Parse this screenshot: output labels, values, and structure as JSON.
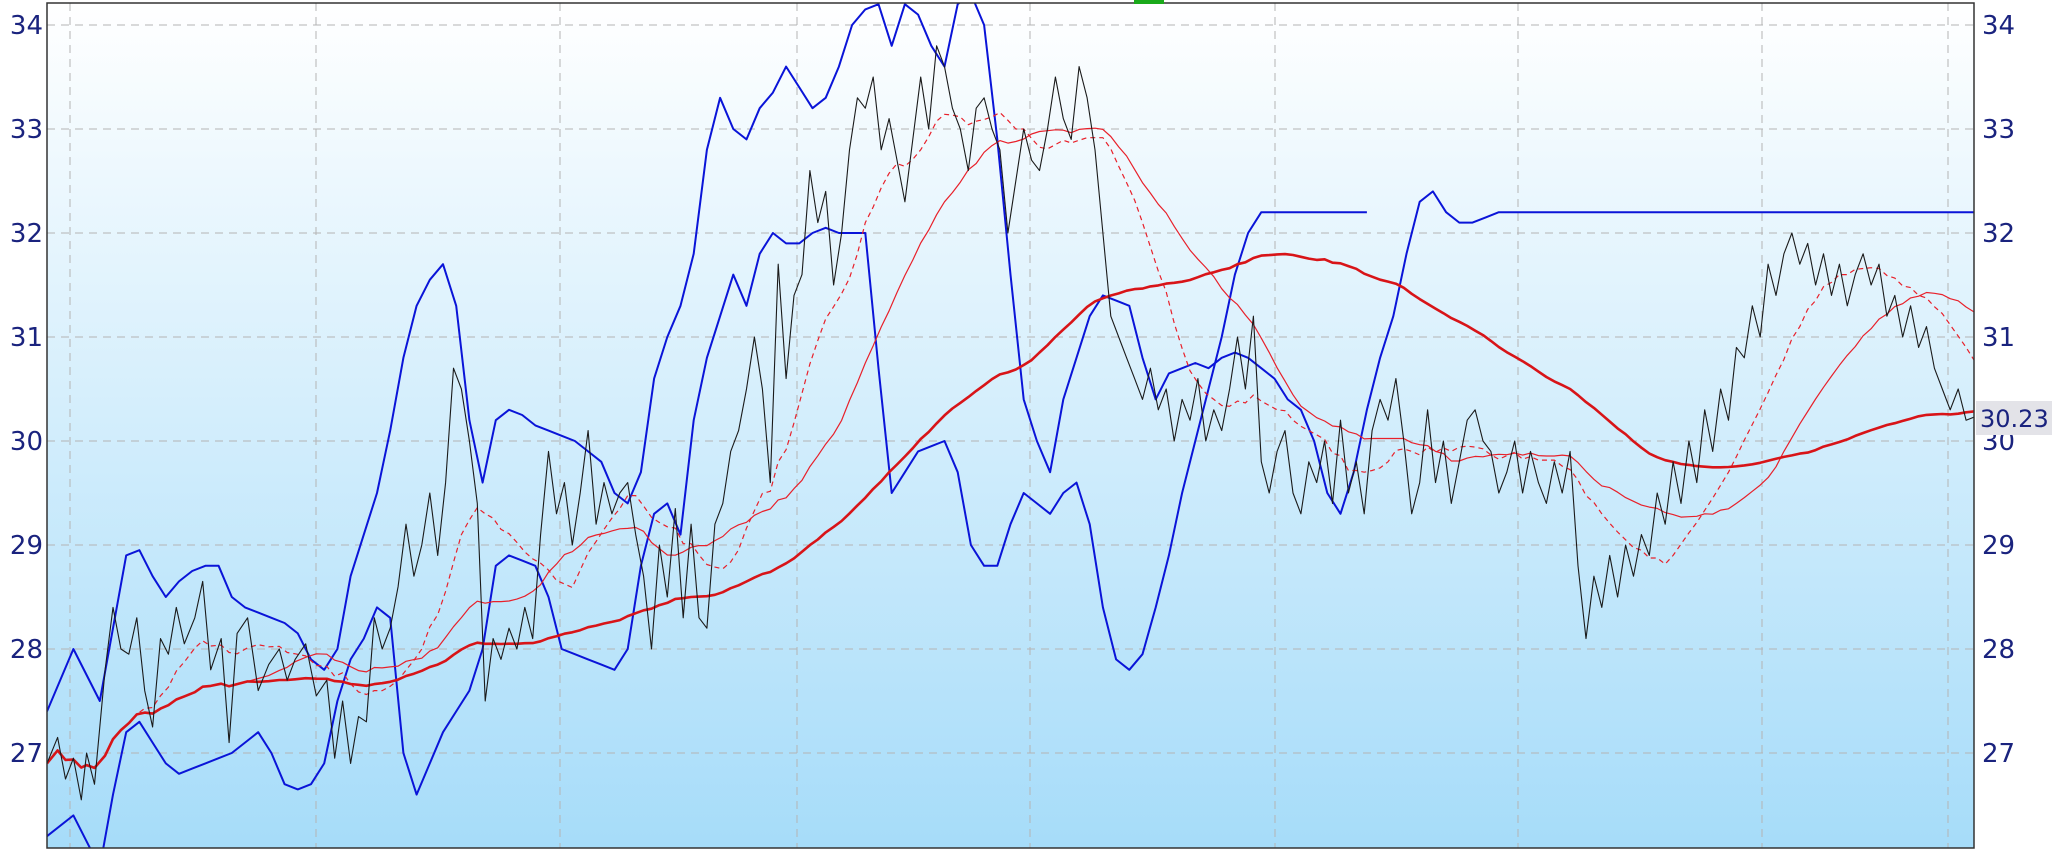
{
  "chart_data": {
    "type": "line",
    "title": "",
    "xlabel": "",
    "ylabel": "",
    "ylim": [
      26.1,
      34.2
    ],
    "y_ticks": [
      27,
      28,
      29,
      30,
      31,
      32,
      33,
      34
    ],
    "y_tick_labels": [
      "27",
      "28",
      "29",
      "30",
      "31",
      "32",
      "33",
      "34"
    ],
    "grid": true,
    "last_value_label": "30.23",
    "colors": {
      "background_top": "#ffffff",
      "background_bottom": "#a6dcf9",
      "price": "#1a1a1a",
      "bollinger": "#0a14d8",
      "ma_fast": "#e8202a",
      "ma_mid": "#e8202a",
      "ma_slow": "#d81418",
      "grid": "#b4b4b4",
      "marker": "#1aaa1a",
      "tick_text": "#1a237e"
    },
    "series": [
      {
        "key": "price",
        "x": [
          0,
          4,
          7,
          10,
          13,
          15,
          18,
          22,
          25,
          28,
          31,
          34,
          37,
          40,
          43,
          46,
          49,
          52,
          56,
          59,
          62,
          66,
          69,
          72,
          76,
          80,
          84,
          88,
          91,
          94,
          98,
          102,
          106,
          109,
          112,
          115,
          118,
          121,
          124,
          127,
          130,
          133,
          136,
          139,
          142,
          145,
          148,
          151,
          154,
          157,
          160,
          163,
          166,
          169,
          172,
          175,
          178,
          181,
          184,
          187,
          190,
          193,
          196,
          199,
          202,
          205,
          208,
          211,
          214,
          217,
          220,
          223,
          226,
          229,
          232,
          235,
          238,
          241,
          244,
          247,
          250,
          253,
          256,
          259,
          262,
          265,
          268,
          271,
          274,
          277,
          280,
          283,
          286,
          289,
          292,
          295,
          298,
          301,
          304,
          307,
          310,
          313,
          316,
          319,
          322,
          325,
          328,
          331,
          334,
          337,
          340,
          343,
          346,
          349,
          352,
          355,
          358,
          361,
          364,
          367,
          370,
          373,
          376,
          379,
          382,
          385,
          388,
          391,
          394,
          397,
          400
        ],
        "y": [
          26.9,
          27.15,
          26.75,
          26.95,
          26.55,
          27.0,
          26.7,
          27.8,
          28.4,
          28.0,
          27.95,
          28.3,
          27.6,
          27.25,
          28.1,
          27.95,
          28.4,
          28.05,
          28.3,
          28.65,
          27.8,
          28.1,
          27.1,
          28.15,
          28.3,
          27.6,
          27.85,
          28.0,
          27.7,
          27.9,
          28.05,
          27.55,
          27.7,
          26.95,
          27.5,
          26.9,
          27.35,
          27.3,
          28.3,
          28.0,
          28.2,
          28.6,
          29.2,
          28.7,
          29.0,
          29.5,
          28.9,
          29.6,
          30.7,
          30.5,
          30.0,
          29.4,
          27.5,
          28.1,
          27.9,
          28.2,
          28.0,
          28.4,
          28.1,
          29.1,
          29.9,
          29.3,
          29.6,
          29.0,
          29.5,
          30.1,
          29.2,
          29.6,
          29.3,
          29.5,
          29.6,
          29.1,
          28.7,
          28.0,
          29.0,
          28.5,
          29.35,
          28.3,
          29.2,
          28.3,
          28.2,
          29.2,
          29.4,
          29.9,
          30.1,
          30.5,
          31.0,
          30.5,
          29.6,
          31.7,
          30.6,
          31.4,
          31.6,
          32.6,
          32.1,
          32.4,
          31.5,
          32.0,
          32.8,
          33.3,
          33.2,
          33.5,
          32.8,
          33.1,
          32.7,
          32.3,
          32.9,
          33.5,
          33.0,
          33.8,
          33.6,
          33.2,
          33.0,
          32.6,
          33.2,
          33.3,
          33.0,
          32.8,
          32.0,
          32.5,
          33.0,
          32.7,
          32.6,
          33.0,
          33.5,
          33.1,
          32.9,
          33.6,
          33.3,
          32.8,
          32.0
        ],
        "x2": [
          403,
          406,
          409,
          412,
          415,
          418,
          421,
          424,
          427,
          430,
          433,
          436,
          439,
          442,
          445,
          448,
          451,
          454,
          457,
          460,
          463,
          466,
          469,
          472,
          475,
          478,
          481,
          484,
          487,
          490,
          493,
          496,
          499,
          502,
          505,
          508,
          511,
          514,
          517,
          520,
          523,
          526,
          529,
          532,
          535,
          538,
          541,
          544,
          547,
          550,
          553,
          556,
          559,
          562,
          565,
          568,
          571,
          574,
          577,
          580,
          583,
          586,
          589,
          592,
          595,
          598,
          601,
          604,
          607,
          610,
          613,
          616,
          619,
          622,
          625,
          628,
          631,
          634,
          637,
          640,
          643,
          646,
          649,
          652,
          655,
          658,
          661,
          664,
          667,
          670,
          673,
          676,
          679,
          682,
          685,
          688,
          691,
          694,
          697,
          700,
          703,
          706,
          709,
          712,
          715,
          718,
          721,
          724,
          727,
          730
        ],
        "y2": [
          31.2,
          31.0,
          30.8,
          30.6,
          30.4,
          30.7,
          30.3,
          30.5,
          30.0,
          30.4,
          30.2,
          30.6,
          30.0,
          30.3,
          30.1,
          30.5,
          31.0,
          30.5,
          31.2,
          29.8,
          29.5,
          29.9,
          30.1,
          29.5,
          29.3,
          29.8,
          29.6,
          30.0,
          29.4,
          30.2,
          29.5,
          29.8,
          29.3,
          30.1,
          30.4,
          30.2,
          30.6,
          30.0,
          29.3,
          29.6,
          30.3,
          29.6,
          30.0,
          29.4,
          29.8,
          30.2,
          30.3,
          30.0,
          29.9,
          29.5,
          29.7,
          30.0,
          29.5,
          29.9,
          29.6,
          29.4,
          29.8,
          29.5,
          29.9,
          28.8,
          28.1,
          28.7,
          28.4,
          28.9,
          28.5,
          29.0,
          28.7,
          29.1,
          28.9,
          29.5,
          29.2,
          29.8,
          29.4,
          30.0,
          29.6,
          30.3,
          29.9,
          30.5,
          30.2,
          30.9,
          30.8,
          31.3,
          31.0,
          31.7,
          31.4,
          31.8,
          32.0,
          31.7,
          31.9,
          31.5,
          31.8,
          31.4,
          31.7,
          31.3,
          31.6,
          31.8,
          31.5,
          31.7,
          31.2,
          31.4,
          31.0,
          31.3,
          30.9,
          31.1,
          30.7,
          30.5,
          30.3,
          30.5,
          30.2,
          30.23
        ]
      },
      {
        "key": "bb_upper",
        "x": [
          0,
          10,
          20,
          25,
          30,
          35,
          40,
          45,
          50,
          55,
          60,
          65,
          70,
          75,
          80,
          85,
          90,
          95,
          100,
          105,
          110,
          115,
          120,
          125,
          130,
          135,
          140,
          145,
          150,
          155,
          160,
          165,
          170,
          175,
          180,
          185,
          190,
          195,
          200,
          205,
          210,
          215,
          220,
          225,
          230,
          235,
          240,
          245,
          250,
          255,
          260,
          265,
          270,
          275,
          280,
          285,
          290,
          295,
          300,
          305,
          310,
          315,
          320,
          325,
          330,
          335,
          340,
          345,
          350,
          355,
          360,
          365,
          370,
          375,
          380,
          385,
          390,
          395,
          400,
          405,
          410,
          415,
          420,
          425,
          430,
          435,
          440,
          445,
          450,
          455,
          460,
          465,
          470,
          475,
          480,
          485,
          490,
          495,
          500,
          505,
          510,
          515,
          520,
          525,
          530,
          535,
          540,
          545,
          550,
          555,
          560,
          565,
          570,
          575,
          580,
          585,
          590,
          595,
          600,
          605,
          610,
          615,
          620,
          625,
          630,
          635,
          640,
          645,
          650,
          655,
          660,
          665,
          670,
          675,
          680,
          685,
          690,
          695,
          700,
          705,
          710,
          715,
          720,
          725,
          730
        ],
        "y": [
          27.4,
          28.0,
          27.5,
          28.2,
          28.9,
          28.95,
          28.7,
          28.5,
          28.65,
          28.75,
          28.8,
          28.8,
          28.5,
          28.4,
          28.35,
          28.3,
          28.25,
          28.15,
          27.9,
          27.8,
          28.0,
          28.7,
          29.1,
          29.5,
          30.1,
          30.8,
          31.3,
          31.55,
          31.7,
          31.3,
          30.2,
          29.6,
          30.2,
          30.3,
          30.25,
          30.15,
          30.1,
          30.05,
          30.0,
          29.9,
          29.8,
          29.5,
          29.4,
          29.7,
          30.6,
          31.0,
          31.3,
          31.8,
          32.8,
          33.3,
          33.0,
          32.9,
          33.2,
          33.35,
          33.6,
          33.4,
          33.2,
          33.3,
          33.6,
          34.0,
          34.15,
          34.2,
          33.8,
          34.2,
          34.1,
          33.8,
          33.6,
          34.2,
          34.3,
          34.0,
          32.9,
          31.6,
          30.4,
          30.0,
          29.7,
          30.4,
          30.8,
          31.2,
          31.4,
          31.35,
          31.3,
          30.8,
          30.4,
          30.65,
          30.7,
          30.75,
          30.7,
          30.8,
          30.85,
          30.8,
          30.7,
          30.6,
          30.4,
          30.3,
          30.0,
          29.5,
          29.3,
          29.7,
          30.3,
          30.8,
          31.2,
          31.8,
          32.3,
          32.4,
          32.2,
          32.1,
          32.1,
          32.15,
          32.2,
          32.2,
          32.2,
          32.2,
          32.2,
          32.2,
          32.2,
          32.2,
          32.2,
          32.2,
          32.2,
          32.2,
          32.2,
          32.2,
          32.2,
          32.2,
          32.2,
          32.2,
          32.2,
          32.2,
          32.2,
          32.2,
          32.2,
          32.2,
          32.2,
          32.2,
          32.2,
          32.2,
          32.2,
          32.2,
          32.2,
          32.2,
          32.2,
          32.2,
          32.2,
          32.2,
          32.2
        ]
      },
      {
        "key": "bb_lower",
        "x": [
          0,
          10,
          20,
          25,
          30,
          35,
          40,
          45,
          50,
          55,
          60,
          65,
          70,
          75,
          80,
          85,
          90,
          95,
          100,
          105,
          110,
          115,
          120,
          125,
          130,
          135,
          140,
          145,
          150,
          155,
          160,
          165,
          170,
          175,
          180,
          185,
          190,
          195,
          200,
          205,
          210,
          215,
          220,
          225,
          230,
          235,
          240,
          245,
          250,
          255,
          260,
          265,
          270,
          275,
          280,
          285,
          290,
          295,
          300,
          305,
          310,
          315,
          320,
          325,
          330,
          335,
          340,
          345,
          350,
          355,
          360,
          365,
          370,
          375,
          380,
          385,
          390,
          395,
          400,
          405,
          410,
          415,
          420,
          425,
          430,
          435,
          440,
          445,
          450,
          455,
          460,
          465,
          470,
          475,
          480,
          485,
          490,
          495,
          500
        ],
        "y": [
          26.2,
          26.4,
          25.9,
          26.6,
          27.2,
          27.3,
          27.1,
          26.9,
          26.8,
          26.85,
          26.9,
          26.95,
          27.0,
          27.1,
          27.2,
          27.0,
          26.7,
          26.65,
          26.7,
          26.9,
          27.5,
          27.9,
          28.1,
          28.4,
          28.3,
          27.0,
          26.6,
          26.9,
          27.2,
          27.4,
          27.6,
          28.0,
          28.8,
          28.9,
          28.85,
          28.8,
          28.5,
          28.0,
          27.95,
          27.9,
          27.85,
          27.8,
          28.0,
          28.8,
          29.3,
          29.4,
          29.1,
          30.2,
          30.8,
          31.2,
          31.6,
          31.3,
          31.8,
          32.0,
          31.9,
          31.9,
          32.0,
          32.05,
          32.0,
          32.0,
          32.0,
          30.7,
          29.5,
          29.7,
          29.9,
          29.95,
          30.0,
          29.7,
          29.0,
          28.8,
          28.8,
          29.2,
          29.5,
          29.4,
          29.3,
          29.5,
          29.6,
          29.2,
          28.4,
          27.9,
          27.8,
          27.95,
          28.4,
          28.9,
          29.5,
          30.0,
          30.5,
          31.0,
          31.6,
          32.0,
          32.2,
          32.2,
          32.2,
          32.2,
          32.2,
          32.2,
          32.2,
          32.2,
          32.2
        ]
      }
    ]
  }
}
